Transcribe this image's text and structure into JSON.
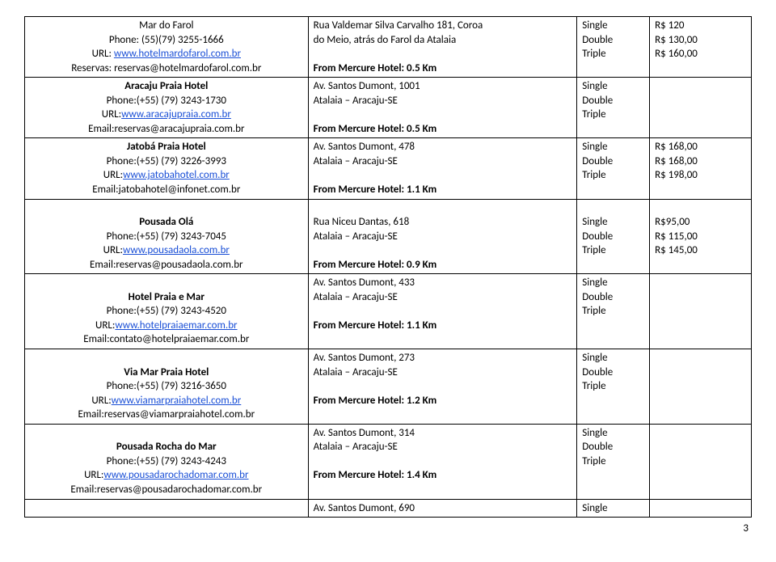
{
  "rows": [
    {
      "col1": [
        {
          "t": "Mar do Farol"
        },
        {
          "t": "Phone: (55)(79) 3255-1666"
        },
        {
          "t": "URL: ",
          "link": "www.hotelmardofarol.com.br"
        },
        {
          "t": "Reservas: reservas@hotelmardofarol.com.br"
        }
      ],
      "col2": [
        {
          "t": "Rua Valdemar Silva Carvalho 181, Coroa"
        },
        {
          "t": "do Meio, atrás do Farol da Atalaia"
        },
        {
          "t": ""
        },
        {
          "t": "From Mercure Hotel: 0.5 Km",
          "bold": true
        }
      ],
      "col3": [
        {
          "t": "Single"
        },
        {
          "t": "Double"
        },
        {
          "t": "Triple"
        }
      ],
      "col4": [
        {
          "t": "R$ 120"
        },
        {
          "t": "R$ 130,00"
        },
        {
          "t": "R$ 160,00"
        }
      ]
    },
    {
      "col1": [
        {
          "t": "Aracaju Praia Hotel",
          "bold": true
        },
        {
          "t": "Phone:(+55) (79) 3243-1730"
        },
        {
          "t": "URL:",
          "link": "www.aracajupraia.com.br"
        },
        {
          "t": "Email:reservas@aracajupraia.com.br"
        }
      ],
      "col2": [
        {
          "t": "Av. Santos Dumont, 1001"
        },
        {
          "t": "Atalaia – Aracaju-SE"
        },
        {
          "t": ""
        },
        {
          "t": "From Mercure Hotel: 0.5 Km",
          "bold": true
        }
      ],
      "col3": [
        {
          "t": "Single"
        },
        {
          "t": "Double"
        },
        {
          "t": "Triple"
        }
      ],
      "col4": [
        {
          "t": ""
        }
      ]
    },
    {
      "col1": [
        {
          "t": "Jatobá Praia Hotel",
          "bold": true
        },
        {
          "t": "Phone:(+55) (79) 3226-3993"
        },
        {
          "t": "URL:",
          "link": "www.jatobahotel.com.br"
        },
        {
          "t": "Email:jatobahotel@infonet.com.br"
        }
      ],
      "col2": [
        {
          "t": "Av. Santos Dumont, 478"
        },
        {
          "t": "Atalaia – Aracaju-SE"
        },
        {
          "t": ""
        },
        {
          "t": "From Mercure Hotel: 1.1 Km",
          "bold": true
        }
      ],
      "col3": [
        {
          "t": "Single"
        },
        {
          "t": "Double"
        },
        {
          "t": "Triple"
        }
      ],
      "col4": [
        {
          "t": "R$ 168,00"
        },
        {
          "t": "R$ 168,00"
        },
        {
          "t": "R$ 198,00"
        }
      ]
    },
    {
      "col1": [
        {
          "t": ""
        },
        {
          "t": "Pousada Olá",
          "bold": true
        },
        {
          "t": "Phone:(+55) (79) 3243-7045"
        },
        {
          "t": "URL:",
          "link": "www.pousadaola.com.br"
        },
        {
          "t": "Email:reservas@pousadaola.com.br"
        }
      ],
      "col2": [
        {
          "t": ""
        },
        {
          "t": "Rua Niceu Dantas, 618"
        },
        {
          "t": "Atalaia – Aracaju-SE"
        },
        {
          "t": ""
        },
        {
          "t": "From Mercure Hotel: 0.9 Km",
          "bold": true
        }
      ],
      "col3": [
        {
          "t": ""
        },
        {
          "t": "Single"
        },
        {
          "t": "Double"
        },
        {
          "t": "Triple"
        }
      ],
      "col4": [
        {
          "t": ""
        },
        {
          "t": "R$95,00"
        },
        {
          "t": "R$ 115,00"
        },
        {
          "t": "R$ 145,00"
        }
      ]
    },
    {
      "col1": [
        {
          "t": ""
        },
        {
          "t": "Hotel Praia e Mar",
          "bold": true
        },
        {
          "t": "Phone:(+55) (79) 3243-4520"
        },
        {
          "t": "URL:",
          "link": "www.hotelpraiaemar.com.br"
        },
        {
          "t": "Email:contato@hotelpraiaemar.com.br"
        }
      ],
      "col2": [
        {
          "t": "Av. Santos Dumont, 433"
        },
        {
          "t": "Atalaia – Aracaju-SE"
        },
        {
          "t": ""
        },
        {
          "t": "From Mercure Hotel:  1.1 Km",
          "bold": true
        }
      ],
      "col3": [
        {
          "t": "Single"
        },
        {
          "t": "Double"
        },
        {
          "t": "Triple"
        }
      ],
      "col4": [
        {
          "t": ""
        }
      ]
    },
    {
      "col1": [
        {
          "t": ""
        },
        {
          "t": "Via Mar Praia Hotel",
          "bold": true
        },
        {
          "t": "Phone:(+55) (79) 3216-3650"
        },
        {
          "t": "URL:",
          "link": "www.viamarpraiahotel.com.br"
        },
        {
          "t": "Email:reservas@viamarpraiahotel.com.br"
        }
      ],
      "col2": [
        {
          "t": "Av. Santos Dumont, 273"
        },
        {
          "t": "Atalaia – Aracaju-SE"
        },
        {
          "t": ""
        },
        {
          "t": "From Mercure Hotel: 1.2 Km",
          "bold": true
        }
      ],
      "col3": [
        {
          "t": "Single"
        },
        {
          "t": "Double"
        },
        {
          "t": "Triple"
        }
      ],
      "col4": [
        {
          "t": ""
        }
      ]
    },
    {
      "col1": [
        {
          "t": ""
        },
        {
          "t": "Pousada Rocha do Mar",
          "bold": true
        },
        {
          "t": "Phone:(+55) (79) 3243-4243"
        },
        {
          "t": "URL:",
          "link": "www.pousadarochadomar.com.br"
        },
        {
          "t": "Email:reservas@pousadarochadomar.com.br"
        }
      ],
      "col2": [
        {
          "t": "Av. Santos Dumont, 314"
        },
        {
          "t": "Atalaia – Aracaju-SE"
        },
        {
          "t": ""
        },
        {
          "t": "From Mercure Hotel:  1.4 Km",
          "bold": true
        }
      ],
      "col3": [
        {
          "t": "Single"
        },
        {
          "t": "Double"
        },
        {
          "t": "Triple"
        }
      ],
      "col4": [
        {
          "t": ""
        }
      ]
    },
    {
      "colspan": true,
      "col2": [
        {
          "t": "Av. Santos Dumont, 690"
        }
      ],
      "col3": [
        {
          "t": "Single"
        }
      ],
      "col4": [
        {
          "t": ""
        }
      ]
    }
  ],
  "pageNum": "3"
}
